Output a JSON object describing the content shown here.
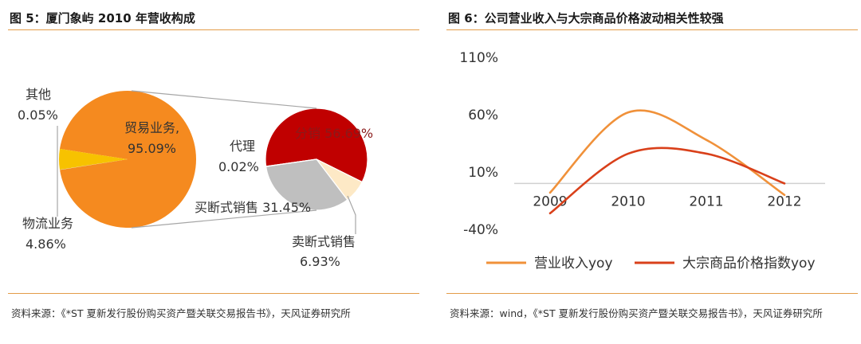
{
  "colors": {
    "accent": "#e39c48",
    "trade": "#f58a1f",
    "logistics": "#f7c200",
    "other": "#d9d9d9",
    "distribution": "#c00000",
    "buyout_sale": "#bfbfbf",
    "agency": "#a6a6a6",
    "buyout_sale_small": "#fde9c6",
    "revenue_line": "#f0913a",
    "commodity_line": "#d9401a"
  },
  "left": {
    "title": "图 5：厦门象屿 2010 年营收构成",
    "source": "资料来源：《*ST 夏新发行股份购买资产暨关联交易报告书》，天风证券研究所"
  },
  "right": {
    "title": "图 6：公司营业收入与大宗商品价格波动相关性较强",
    "source": "资料来源：wind，《*ST 夏新发行股份购买资产暨关联交易报告书》，天风证券研究所"
  },
  "chart_data": [
    {
      "type": "pie",
      "slices": [
        {
          "label": "贸易业务,",
          "value_label": "95.09%",
          "value": 95.09
        },
        {
          "label": "物流业务",
          "value_label": "4.86%",
          "value": 4.86
        },
        {
          "label": "其他",
          "value_label": "0.05%",
          "value": 0.05
        }
      ],
      "sub_pie": {
        "slices": [
          {
            "label": "分销",
            "value_label": "56.69%",
            "value": 56.69
          },
          {
            "label": "买断式销售",
            "value_label": "31.45%",
            "value": 31.45
          },
          {
            "label": "代理",
            "value_label": "0.02%",
            "value": 0.02
          },
          {
            "label": "卖断式销售",
            "value_label": "6.93%",
            "value": 6.93
          }
        ]
      }
    },
    {
      "type": "line",
      "x": [
        "2009",
        "2010",
        "2011",
        "2012"
      ],
      "ylim": [
        -40,
        110
      ],
      "yticks": [
        "110%",
        "60%",
        "10%",
        "-40%"
      ],
      "ytick_values": [
        110,
        60,
        10,
        -40
      ],
      "series": [
        {
          "name": "营业收入yoy",
          "values": [
            -8,
            62,
            38,
            -10
          ]
        },
        {
          "name": "大宗商品价格指数yoy",
          "values": [
            -26,
            26,
            26,
            0
          ]
        }
      ],
      "legend": "bottom"
    }
  ]
}
